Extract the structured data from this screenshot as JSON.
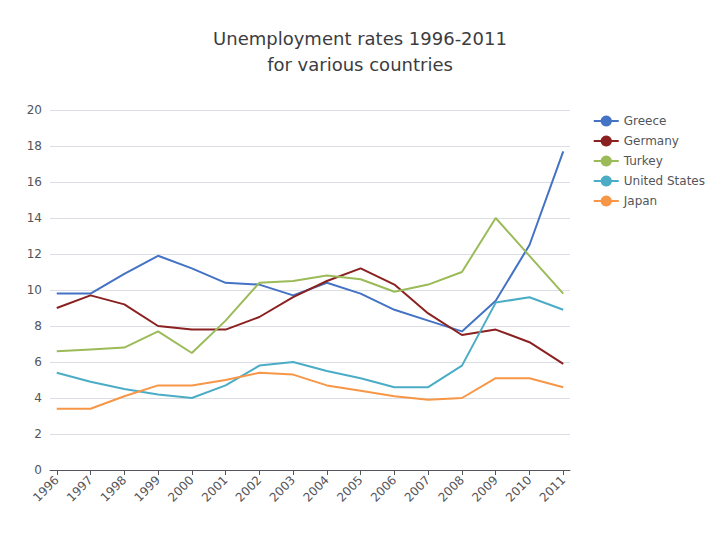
{
  "chart_data": {
    "type": "line",
    "title": "Unemployment rates 1996-2011\nfor various countries",
    "x": [
      1996,
      1997,
      1998,
      1999,
      2000,
      2001,
      2002,
      2003,
      2004,
      2005,
      2006,
      2007,
      2008,
      2009,
      2010,
      2011
    ],
    "series": [
      {
        "name": "Greece",
        "color": "#4472C4",
        "values": [
          9.8,
          9.8,
          10.9,
          11.9,
          11.2,
          10.4,
          10.3,
          9.7,
          10.4,
          9.8,
          8.9,
          8.3,
          7.7,
          9.4,
          12.5,
          17.7
        ]
      },
      {
        "name": "Germany",
        "color": "#8B2020",
        "values": [
          9.0,
          9.7,
          9.2,
          8.0,
          7.8,
          7.8,
          8.5,
          9.6,
          10.5,
          11.2,
          10.3,
          8.7,
          7.5,
          7.8,
          7.1,
          5.9
        ]
      },
      {
        "name": "Turkey",
        "color": "#9BBB59",
        "values": [
          6.6,
          6.7,
          6.8,
          7.7,
          6.5,
          8.3,
          10.4,
          10.5,
          10.8,
          10.6,
          9.9,
          10.3,
          11.0,
          14.0,
          11.9,
          9.8
        ]
      },
      {
        "name": "United States",
        "color": "#4BACC6",
        "values": [
          5.4,
          4.9,
          4.5,
          4.2,
          4.0,
          4.7,
          5.8,
          6.0,
          5.5,
          5.1,
          4.6,
          4.6,
          5.8,
          9.3,
          9.6,
          8.9
        ]
      },
      {
        "name": "Japan",
        "color": "#F79646",
        "values": [
          3.4,
          3.4,
          4.1,
          4.7,
          4.7,
          5.0,
          5.4,
          5.3,
          4.7,
          4.4,
          4.1,
          3.9,
          4.0,
          5.1,
          5.1,
          4.6
        ]
      }
    ],
    "xlim": [
      1995.8,
      2011.2
    ],
    "xticks": [
      1996,
      1997,
      1998,
      1999,
      2000,
      2001,
      2002,
      2003,
      2004,
      2005,
      2006,
      2007,
      2008,
      2009,
      2010,
      2011
    ],
    "ylim": [
      0,
      20
    ],
    "yticks": [
      0,
      2,
      4,
      6,
      8,
      10,
      12,
      14,
      16,
      18,
      20
    ],
    "grid": true,
    "legend": "right"
  }
}
